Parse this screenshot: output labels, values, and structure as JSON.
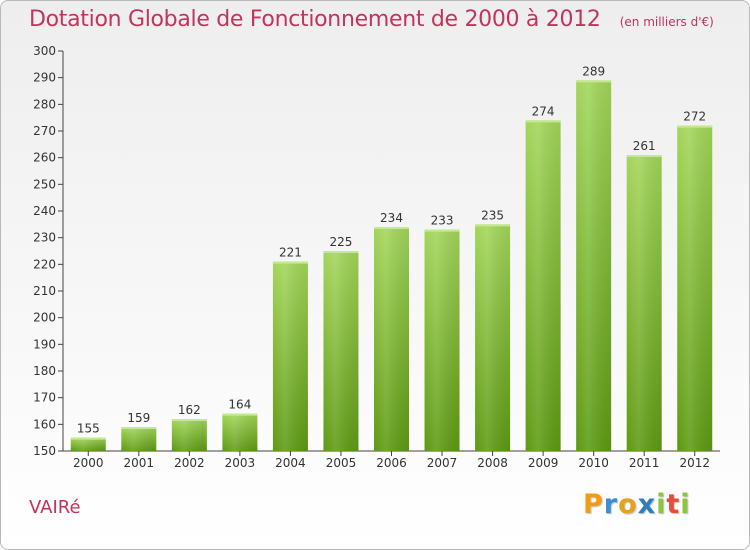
{
  "chart_data": {
    "type": "bar",
    "title": "Dotation Globale de Fonctionnement de 2000 à 2012",
    "subtitle": "(en milliers d'€)",
    "categories": [
      "2000",
      "2001",
      "2002",
      "2003",
      "2004",
      "2005",
      "2006",
      "2007",
      "2008",
      "2009",
      "2010",
      "2011",
      "2012"
    ],
    "values": [
      155,
      159,
      162,
      164,
      221,
      225,
      234,
      233,
      235,
      274,
      289,
      261,
      272
    ],
    "ylim": [
      150,
      300
    ],
    "yticks": [
      150,
      160,
      170,
      180,
      190,
      200,
      210,
      220,
      230,
      240,
      250,
      260,
      270,
      280,
      290,
      300
    ],
    "grid": false,
    "legend": "none",
    "colors": {
      "bar_top": "#a3d65a",
      "bar_bottom": "#5d9a12",
      "title": "#c1345b"
    }
  },
  "commune": "VAIRé",
  "logo": {
    "name": "Proxiti",
    "letters": [
      {
        "char": "P",
        "color": "#f39c12"
      },
      {
        "char": "r",
        "color": "#3a8fd0"
      },
      {
        "char": "o",
        "color": "#e8a11d"
      },
      {
        "char": "x",
        "color": "#2b7fc1"
      },
      {
        "char": "i",
        "color": "#8cc63f"
      },
      {
        "char": "t",
        "color": "#e74c3c"
      },
      {
        "char": "i",
        "color": "#8cc63f"
      }
    ]
  }
}
